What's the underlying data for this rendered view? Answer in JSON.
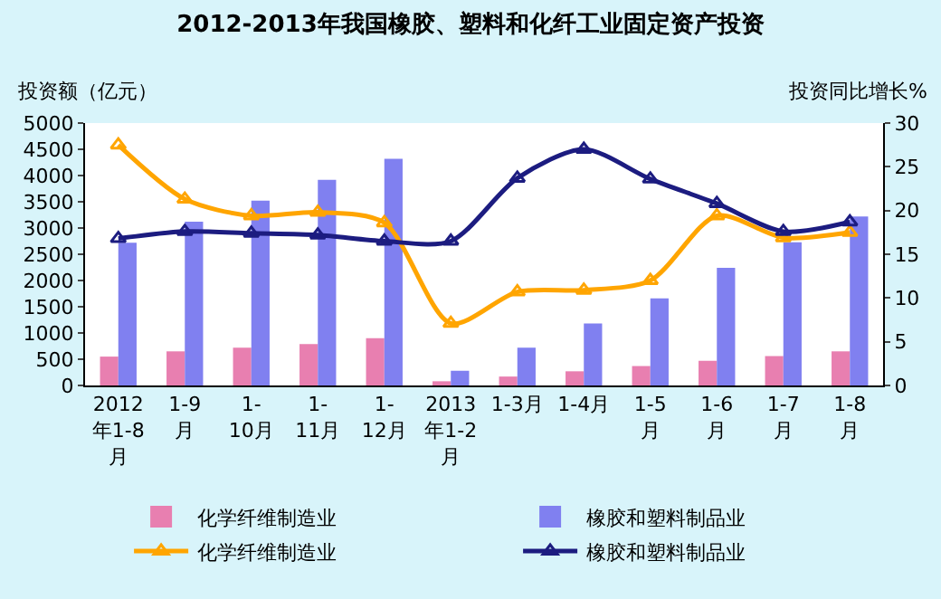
{
  "chart_data": {
    "type": "bar",
    "title": "2012-2013年我国橡胶、塑料和化纤工业固定资产投资",
    "ylabel": "投资额（亿元）",
    "y2label": "投资同比增长%",
    "categories": [
      "2012\n年1-8\n月",
      "1-9\n月",
      "1-\n10月",
      "1-\n11月",
      "1-\n12月",
      "2013\n年1-2\n月",
      "1-3月",
      "1-4月",
      "1-5\n月",
      "1-6\n月",
      "1-7\n月",
      "1-8\n月"
    ],
    "series": [
      {
        "name": "化学纤维制造业",
        "color": "#e87fb0",
        "values": [
          550,
          650,
          720,
          790,
          900,
          80,
          170,
          270,
          370,
          470,
          560,
          650
        ]
      },
      {
        "name": "橡胶和塑料制品业",
        "color": "#8080f0",
        "values": [
          2720,
          3120,
          3520,
          3920,
          4320,
          280,
          720,
          1180,
          1660,
          2240,
          2730,
          3220
        ]
      },
      {
        "name": "化学纤维制造业",
        "type": "line",
        "axis": "y2",
        "color": "#ffa500",
        "values": [
          27.5,
          21.3,
          19.4,
          19.8,
          18.6,
          7.1,
          10.7,
          10.9,
          12.0,
          19.4,
          16.9,
          17.5
        ]
      },
      {
        "name": "橡胶和塑料制品业",
        "type": "line",
        "axis": "y2",
        "color": "#1c1c80",
        "values": [
          16.8,
          17.6,
          17.4,
          17.2,
          16.5,
          16.5,
          23.7,
          27.0,
          23.6,
          20.8,
          17.6,
          18.7
        ]
      }
    ],
    "ylim": [
      0,
      5000
    ],
    "yticks": [
      0,
      500,
      1000,
      1500,
      2000,
      2500,
      3000,
      3500,
      4000,
      4500,
      5000
    ],
    "y2lim": [
      0,
      30
    ],
    "y2ticks": [
      0,
      5,
      10,
      15,
      20,
      25,
      30
    ],
    "marker": "triangle",
    "line_style": "solid",
    "legend": "bottom"
  }
}
